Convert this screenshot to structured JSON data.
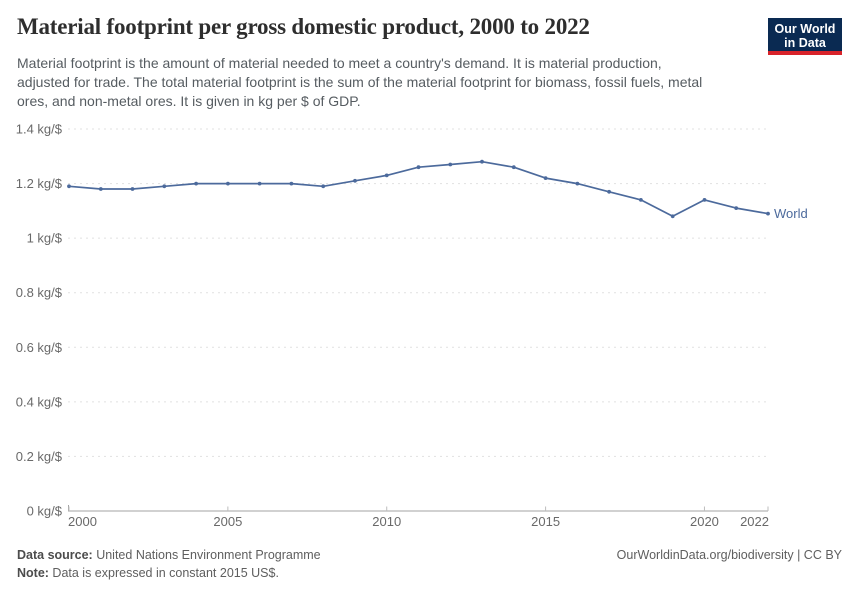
{
  "header": {
    "title": "Material footprint per gross domestic product, 2000 to 2022",
    "subtitle_lines": [
      "Material footprint is the amount of material needed to meet a country's demand. It is material production,",
      "adjusted for trade. The total material footprint is the sum of the material footprint for biomass, fossil fuels, metal",
      "ores, and non-metal ores. It is given in kg per $ of GDP."
    ],
    "logo": {
      "line1": "Our World",
      "line2": "in Data",
      "bg_color": "#0a2a52",
      "stripe_color": "#d8232a"
    }
  },
  "chart_data": {
    "type": "line",
    "title": "Material footprint per gross domestic product, 2000 to 2022",
    "unit": "kg/$",
    "x": [
      2000,
      2001,
      2002,
      2003,
      2004,
      2005,
      2006,
      2007,
      2008,
      2009,
      2010,
      2011,
      2012,
      2013,
      2014,
      2015,
      2016,
      2017,
      2018,
      2019,
      2020,
      2021,
      2022
    ],
    "series": [
      {
        "name": "World",
        "color": "#4C6A9C",
        "values": [
          1.19,
          1.18,
          1.18,
          1.19,
          1.2,
          1.2,
          1.2,
          1.2,
          1.19,
          1.21,
          1.23,
          1.26,
          1.27,
          1.28,
          1.26,
          1.22,
          1.2,
          1.17,
          1.14,
          1.08,
          1.14,
          1.11,
          1.09
        ]
      }
    ],
    "xlim": [
      2000,
      2022
    ],
    "ylim": [
      0,
      1.4
    ],
    "grid": "horizontal-dashed",
    "legend_position": "end-of-line",
    "yticks": [
      {
        "value": 0,
        "label": "0 kg/$"
      },
      {
        "value": 0.2,
        "label": "0.2 kg/$"
      },
      {
        "value": 0.4,
        "label": "0.4 kg/$"
      },
      {
        "value": 0.6,
        "label": "0.6 kg/$"
      },
      {
        "value": 0.8,
        "label": "0.8 kg/$"
      },
      {
        "value": 1,
        "label": "1 kg/$"
      },
      {
        "value": 1.2,
        "label": "1.2 kg/$"
      },
      {
        "value": 1.4,
        "label": "1.4 kg/$"
      }
    ],
    "xticks": [
      2000,
      2005,
      2010,
      2015,
      2020,
      2022
    ]
  },
  "footer": {
    "source_label": "Data source:",
    "source_text": " United Nations Environment Programme",
    "note_label": "Note:",
    "note_text": " Data is expressed in constant 2015 US$.",
    "credit": "OurWorldinData.org/biodiversity | CC BY"
  }
}
